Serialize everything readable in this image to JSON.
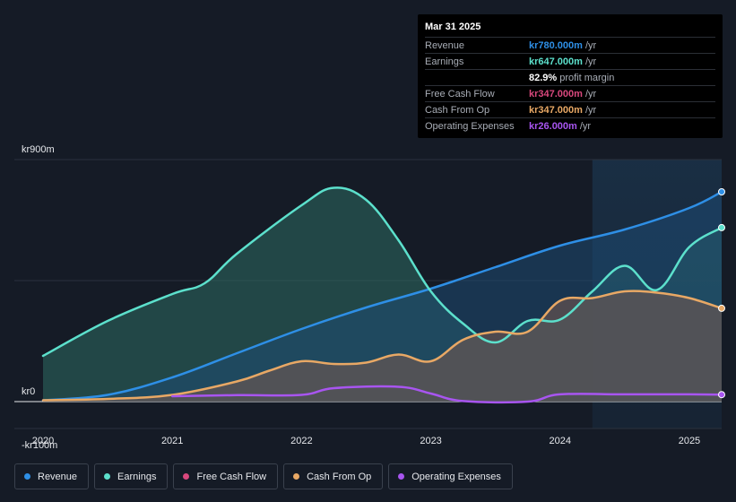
{
  "tooltip": {
    "date": "Mar 31 2025",
    "rows": [
      {
        "name": "Revenue",
        "value": "kr780.000m",
        "unit": "/yr",
        "color": "#2e8fe6"
      },
      {
        "name": "Earnings",
        "value": "kr647.000m",
        "unit": "/yr",
        "color": "#5ce0cc"
      },
      {
        "name": "",
        "value": "82.9%",
        "unit": "profit margin",
        "color": "#ffffff"
      },
      {
        "name": "Free Cash Flow",
        "value": "kr347.000m",
        "unit": "/yr",
        "color": "#d9487d"
      },
      {
        "name": "Cash From Op",
        "value": "kr347.000m",
        "unit": "/yr",
        "color": "#e8a865"
      },
      {
        "name": "Operating Expenses",
        "value": "kr26.000m",
        "unit": "/yr",
        "color": "#a855f0"
      }
    ]
  },
  "legend": [
    {
      "label": "Revenue",
      "color": "#2e8fe6"
    },
    {
      "label": "Earnings",
      "color": "#5ce0cc"
    },
    {
      "label": "Free Cash Flow",
      "color": "#d9487d"
    },
    {
      "label": "Cash From Op",
      "color": "#e8a865"
    },
    {
      "label": "Operating Expenses",
      "color": "#a855f0"
    }
  ],
  "chart_data": {
    "type": "area",
    "title": "",
    "xlabel": "",
    "ylabel": "",
    "y_tick_labels": [
      "kr900m",
      "kr0",
      "-kr100m"
    ],
    "ylim": [
      -100,
      900
    ],
    "xlim": [
      2020.0,
      2025.25
    ],
    "x_tick_labels": [
      "2020",
      "2021",
      "2022",
      "2023",
      "2024",
      "2025"
    ],
    "x_ticks": [
      2020,
      2021,
      2022,
      2023,
      2024,
      2025
    ],
    "forecast_start": 2024.25,
    "series": [
      {
        "name": "Revenue",
        "color": "#2e8fe6",
        "fill": true,
        "points": [
          [
            2020.0,
            5
          ],
          [
            2020.5,
            25
          ],
          [
            2021.0,
            90
          ],
          [
            2021.5,
            180
          ],
          [
            2022.0,
            270
          ],
          [
            2022.5,
            350
          ],
          [
            2023.0,
            420
          ],
          [
            2023.5,
            500
          ],
          [
            2024.0,
            580
          ],
          [
            2024.5,
            640
          ],
          [
            2025.0,
            720
          ],
          [
            2025.25,
            780
          ]
        ]
      },
      {
        "name": "Earnings",
        "color": "#5ce0cc",
        "fill": true,
        "points": [
          [
            2020.0,
            170
          ],
          [
            2020.5,
            300
          ],
          [
            2021.0,
            400
          ],
          [
            2021.25,
            440
          ],
          [
            2021.5,
            550
          ],
          [
            2022.0,
            730
          ],
          [
            2022.25,
            795
          ],
          [
            2022.5,
            750
          ],
          [
            2022.75,
            600
          ],
          [
            2023.0,
            410
          ],
          [
            2023.25,
            290
          ],
          [
            2023.5,
            220
          ],
          [
            2023.75,
            300
          ],
          [
            2024.0,
            305
          ],
          [
            2024.25,
            410
          ],
          [
            2024.5,
            505
          ],
          [
            2024.75,
            415
          ],
          [
            2025.0,
            575
          ],
          [
            2025.25,
            647
          ]
        ]
      },
      {
        "name": "Cash From Op",
        "color": "#e8a865",
        "fill": true,
        "points": [
          [
            2020.0,
            5
          ],
          [
            2020.5,
            10
          ],
          [
            2021.0,
            25
          ],
          [
            2021.5,
            75
          ],
          [
            2021.75,
            115
          ],
          [
            2022.0,
            150
          ],
          [
            2022.25,
            140
          ],
          [
            2022.5,
            145
          ],
          [
            2022.75,
            175
          ],
          [
            2023.0,
            150
          ],
          [
            2023.25,
            230
          ],
          [
            2023.5,
            260
          ],
          [
            2023.75,
            260
          ],
          [
            2024.0,
            375
          ],
          [
            2024.25,
            385
          ],
          [
            2024.5,
            410
          ],
          [
            2024.75,
            405
          ],
          [
            2025.0,
            385
          ],
          [
            2025.25,
            347
          ]
        ]
      },
      {
        "name": "Free Cash Flow",
        "color": "#d9487d",
        "fill": false,
        "points": []
      },
      {
        "name": "Operating Expenses",
        "color": "#a855f0",
        "fill": false,
        "points": [
          [
            2021.0,
            20
          ],
          [
            2021.5,
            24
          ],
          [
            2022.0,
            25
          ],
          [
            2022.25,
            50
          ],
          [
            2022.75,
            55
          ],
          [
            2023.0,
            30
          ],
          [
            2023.25,
            2
          ],
          [
            2023.75,
            0
          ],
          [
            2024.0,
            27
          ],
          [
            2024.5,
            27
          ],
          [
            2025.0,
            27
          ],
          [
            2025.25,
            26
          ]
        ]
      }
    ]
  }
}
